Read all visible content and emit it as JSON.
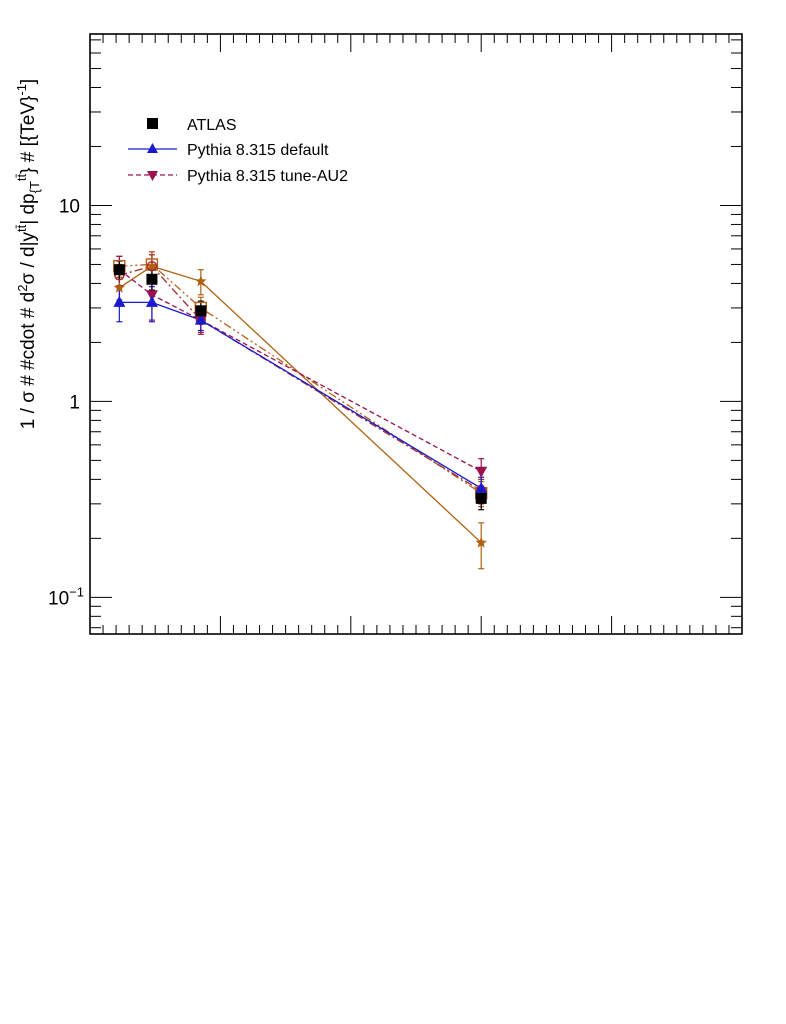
{
  "chart_data": {
    "type": "line",
    "title": "",
    "ylabel": "1 / σ # #cdot # d²σ / d|y^{tt̄}| dp_{T}^{tt̄} # [{TeV}⁻¹]",
    "ylabel_parts": {
      "main": "1 / σ # #cdot # d",
      "sup2": "2",
      "sigma": "σ / d|y",
      "sup_tt": "tt̄",
      "mid": "| dp",
      "sub_T": "{T",
      "sup_tt2": "tt̄",
      "tail": "}",
      "tail2": " # [{TeV}",
      "sup_m1": "-1",
      "end": "]"
    },
    "xlabel": "",
    "yscale": "log",
    "ylim": [
      0.065,
      75
    ],
    "xlim": [
      0,
      10
    ],
    "yticks": [
      {
        "value": 10,
        "label": "10"
      },
      {
        "value": 1,
        "label": "1"
      },
      {
        "value": 0.1,
        "label": "10",
        "exp": "−1"
      }
    ],
    "x": [
      0.45,
      0.95,
      1.7,
      6.0
    ],
    "series": [
      {
        "name": "ATLAS",
        "color": "#000000",
        "marker": "square",
        "line": "none",
        "values": [
          4.7,
          4.2,
          2.9,
          0.32
        ],
        "errors": [
          0.5,
          0.5,
          0.35,
          0.04
        ]
      },
      {
        "name": "Pythia 8.315 default",
        "color": "#1a1acc",
        "marker": "triangle-up",
        "line": "solid",
        "values": [
          3.2,
          3.2,
          2.6,
          0.36
        ],
        "errors": [
          0.65,
          0.65,
          0.3,
          0.05
        ]
      },
      {
        "name": "Pythia 8.315 tune-AU2",
        "color": "#99114d",
        "marker": "triangle-down",
        "line": "dash",
        "values": [
          4.7,
          3.5,
          2.6,
          0.44
        ],
        "errors": [
          0.8,
          0.9,
          0.4,
          0.07
        ]
      },
      {
        "name": "",
        "color": "#a4282b",
        "marker": "circle-open",
        "line": "dashdot",
        "values": [
          4.4,
          4.9,
          2.6,
          0.35
        ],
        "errors": [
          0.6,
          0.7,
          0.35,
          0.05
        ]
      },
      {
        "name": "",
        "color": "#b3601a",
        "marker": "square-open",
        "line": "dashdotdot",
        "values": [
          4.9,
          5.0,
          3.0,
          0.34
        ],
        "errors": [
          0.6,
          0.8,
          0.4,
          0.05
        ]
      },
      {
        "name": "",
        "color": "#b06010",
        "marker": "star",
        "line": "solid",
        "values": [
          3.8,
          4.9,
          4.1,
          0.19
        ],
        "errors": [
          0.5,
          0.9,
          0.6,
          0.05
        ]
      }
    ],
    "legend": {
      "position": "top-left",
      "entries": [
        "ATLAS",
        "Pythia 8.315 default",
        "Pythia 8.315 tune-AU2"
      ]
    }
  }
}
